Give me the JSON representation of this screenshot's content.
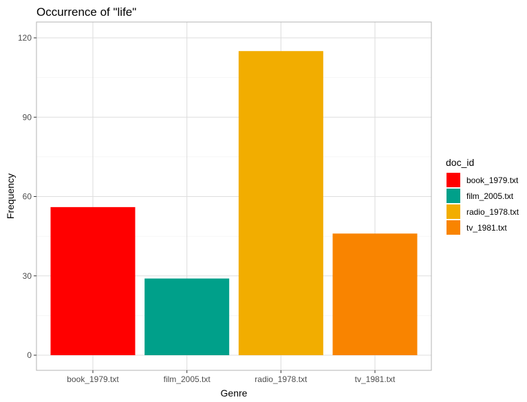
{
  "chart_data": {
    "type": "bar",
    "title": "Occurrence of \"life\"",
    "xlabel": "Genre",
    "ylabel": "Frequency",
    "categories": [
      "book_1979.txt",
      "film_2005.txt",
      "radio_1978.txt",
      "tv_1981.txt"
    ],
    "values": [
      56,
      29,
      115,
      46
    ],
    "colors": [
      "#ff0000",
      "#00a08a",
      "#f2ad00",
      "#f98400"
    ],
    "ylim": [
      0,
      120
    ],
    "yticks": [
      0,
      30,
      60,
      90,
      120
    ],
    "grid": true,
    "legend": {
      "title": "doc_id",
      "placement": "right",
      "entries": [
        "book_1979.txt",
        "film_2005.txt",
        "radio_1978.txt",
        "tv_1981.txt"
      ]
    }
  }
}
